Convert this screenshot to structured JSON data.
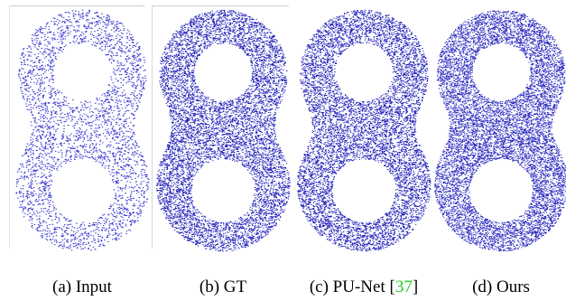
{
  "figure": {
    "panels": [
      {
        "caption_parts": [
          "(a) Input"
        ]
      },
      {
        "caption_parts": [
          "(b) GT"
        ]
      },
      {
        "caption_parts": [
          "(c) PU-Net [",
          "37",
          "]"
        ]
      },
      {
        "caption_parts": [
          "(d) Ours"
        ]
      }
    ]
  }
}
